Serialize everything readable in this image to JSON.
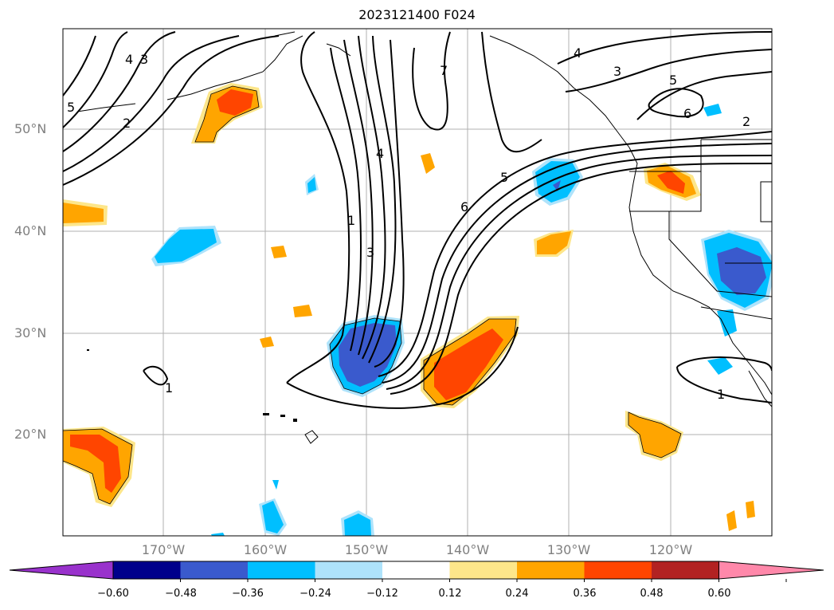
{
  "title": "2023121400 F024",
  "lat_labels": [
    "50°N",
    "40°N",
    "30°N",
    "20°N"
  ],
  "lon_labels": [
    "170°W",
    "160°W",
    "150°W",
    "140°W",
    "130°W",
    "120°W"
  ],
  "contour_labels": [
    "1",
    "2",
    "3",
    "4",
    "5",
    "6",
    "7"
  ],
  "colorbar": {
    "colors": [
      "#9932cc",
      "#00008b",
      "#3a5acd",
      "#00bfff",
      "#aee3fb",
      "#ffffff",
      "#fde68a",
      "#ffa500",
      "#ff4500",
      "#b22222",
      "#ff88aa"
    ],
    "ticks": [
      "−0.60",
      "−0.48",
      "−0.36",
      "−0.24",
      "−0.12",
      "0.12",
      "0.24",
      "0.36",
      "0.48",
      "0.60"
    ]
  }
}
